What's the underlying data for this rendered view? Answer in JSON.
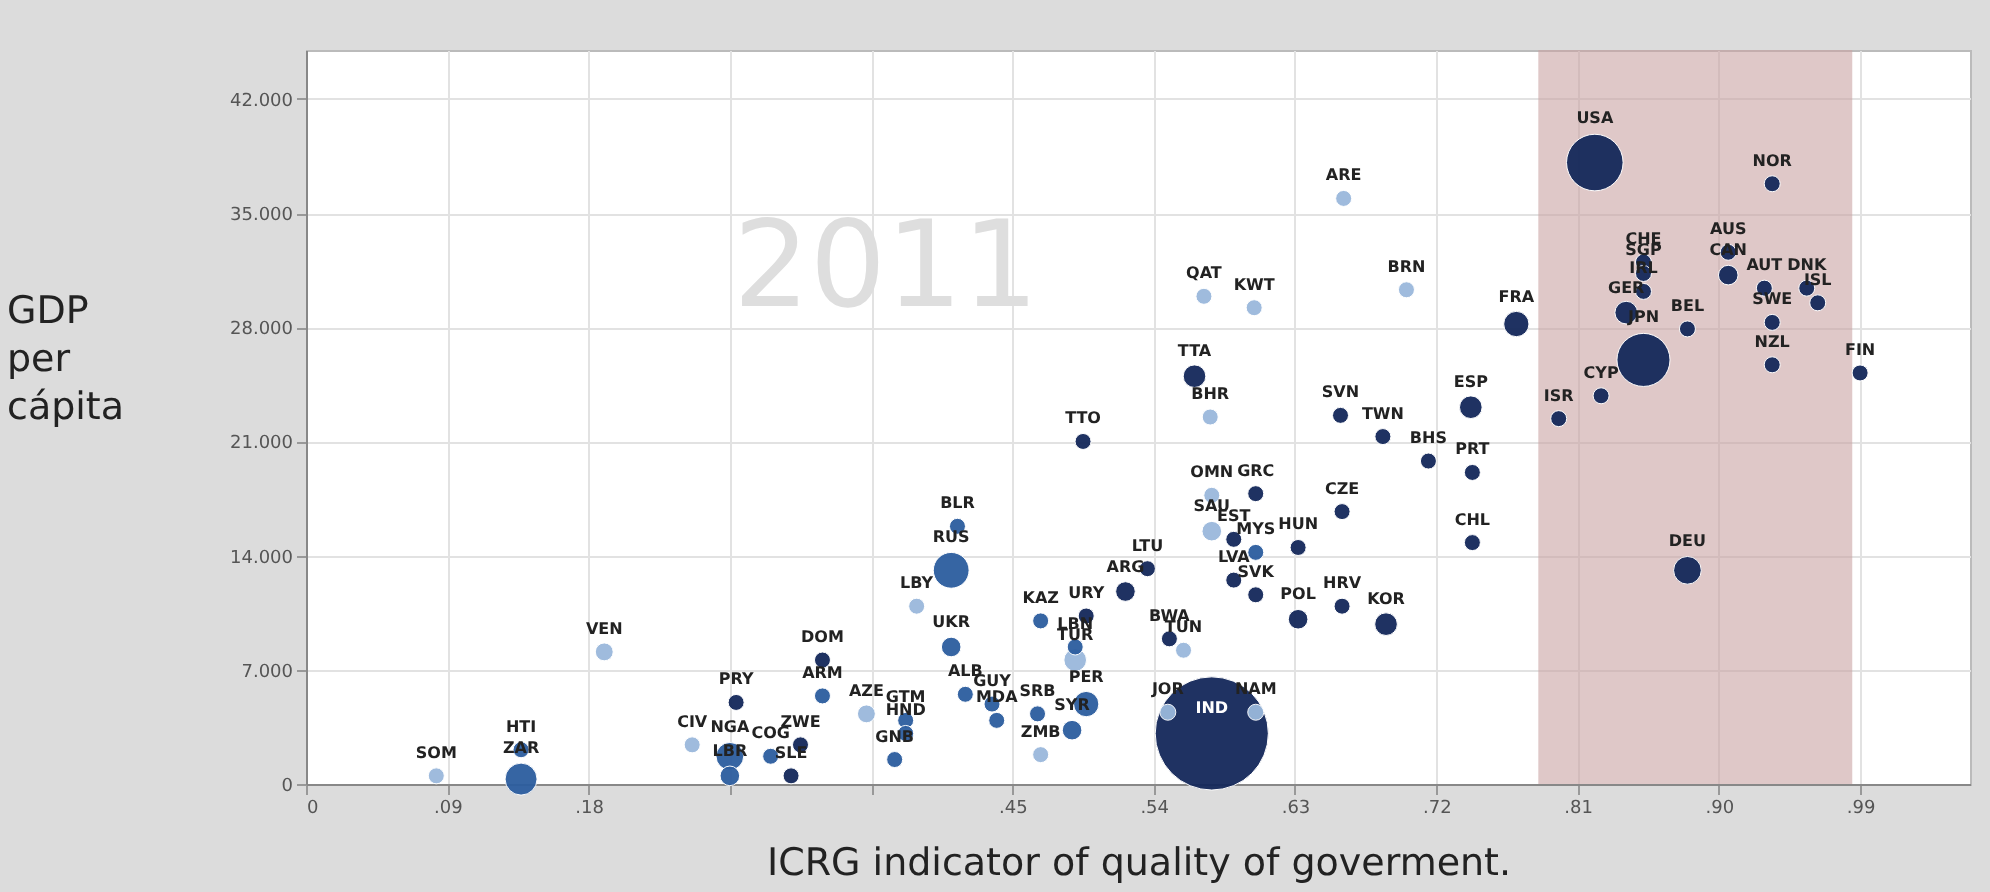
{
  "chart_data": {
    "type": "bubble",
    "xlabel": "ICRG indicator of quality of goverment.",
    "ylabel": "GDP per cápita",
    "xlim": [
      0,
      1.06
    ],
    "ylim": [
      0,
      45000
    ],
    "xticks": [
      0,
      {
        "value": 0.09,
        "label": ".09"
      },
      {
        "value": 0.18,
        "label": ".18"
      },
      {
        "value": 0.27,
        "label": null
      },
      {
        "value": 0.36,
        "label": null
      },
      {
        "value": 0.45,
        "label": ".45"
      },
      {
        "value": 0.54,
        "label": ".54"
      },
      {
        "value": 0.63,
        "label": ".63"
      },
      {
        "value": 0.72,
        "label": ".72"
      },
      {
        "value": 0.81,
        "label": ".81"
      },
      {
        "value": 0.9,
        "label": ".90"
      },
      {
        "value": 0.99,
        "label": ".99"
      }
    ],
    "yticks": [
      0,
      {
        "value": 7000,
        "label": "7.000"
      },
      {
        "value": 14000,
        "label": "14.000"
      },
      {
        "value": 21000,
        "label": "21.000"
      },
      {
        "value": 28000,
        "label": "28.000"
      },
      {
        "value": 35000,
        "label": "35.000"
      },
      {
        "value": 42000,
        "label": "42.000"
      }
    ],
    "grid": true,
    "x": [
      0.083,
      0.137,
      0.137,
      0.19,
      0.246,
      0.274,
      0.27,
      0.296,
      0.315,
      0.27,
      0.309,
      0.329,
      0.329,
      0.357,
      0.382,
      0.382,
      0.375,
      0.415,
      0.411,
      0.389,
      0.468,
      0.497,
      0.522,
      0.536,
      0.411,
      0.42,
      0.437,
      0.44,
      0.466,
      0.488,
      0.468,
      0.49,
      0.49,
      0.497,
      0.55,
      0.559,
      0.549,
      0.605,
      0.577,
      0.577,
      0.605,
      0.577,
      0.591,
      0.605,
      0.632,
      0.66,
      0.591,
      0.605,
      0.632,
      0.66,
      0.688,
      0.495,
      0.566,
      0.576,
      0.572,
      0.604,
      0.661,
      0.701,
      0.659,
      0.686,
      0.742,
      0.715,
      0.743,
      0.743,
      0.798,
      0.825,
      0.771,
      0.821,
      0.934,
      0.852,
      0.852,
      0.852,
      0.841,
      0.852,
      0.88,
      0.906,
      0.906,
      0.929,
      0.956,
      0.963,
      0.934,
      0.934,
      0.99,
      0.88
    ],
    "values": [
      500,
      2100,
      300,
      8100,
      2400,
      5000,
      1700,
      1700,
      2400,
      500,
      500,
      7600,
      5400,
      4300,
      3900,
      3100,
      1500,
      15800,
      13100,
      10900,
      10000,
      10300,
      11800,
      13200,
      8400,
      5500,
      4900,
      3900,
      4300,
      3300,
      1800,
      8400,
      7600,
      4900,
      8900,
      8200,
      4400,
      4400,
      3100,
      17700,
      17800,
      15500,
      15000,
      14200,
      14500,
      16700,
      12500,
      11600,
      10100,
      10900,
      9800,
      21000,
      25000,
      22500,
      29900,
      29200,
      35900,
      30300,
      22600,
      21300,
      23100,
      19800,
      19100,
      14800,
      22400,
      23800,
      28200,
      38100,
      36800,
      32000,
      31300,
      30200,
      28900,
      26000,
      27900,
      32600,
      31200,
      30400,
      30400,
      29500,
      28300,
      25700,
      25200,
      13100
    ],
    "sizes": [
      0.02,
      0.02,
      0.08,
      0.025,
      0.02,
      0.02,
      0.06,
      0.02,
      0.02,
      0.03,
      0.02,
      0.02,
      0.02,
      0.025,
      0.02,
      0.02,
      0.02,
      0.02,
      0.1,
      0.02,
      0.02,
      0.02,
      0.03,
      0.02,
      0.03,
      0.02,
      0.02,
      0.02,
      0.02,
      0.03,
      0.02,
      0.02,
      0.04,
      0.05,
      0.02,
      0.02,
      0.02,
      0.02,
      1.0,
      0.02,
      0.02,
      0.03,
      0.02,
      0.02,
      0.02,
      0.02,
      0.02,
      0.02,
      0.03,
      0.02,
      0.04,
      0.02,
      0.04,
      0.02,
      0.02,
      0.02,
      0.02,
      0.02,
      0.02,
      0.02,
      0.04,
      0.02,
      0.02,
      0.02,
      0.02,
      0.02,
      0.05,
      0.25,
      0.02,
      0.02,
      0.02,
      0.02,
      0.04,
      0.22,
      0.02,
      0.02,
      0.03,
      0.02,
      0.02,
      0.02,
      0.02,
      0.02,
      0.02,
      0.06
    ],
    "colors": [
      "#9ab8dc",
      "#2c5d9f",
      "#2c5d9f",
      "#9ab8dc",
      "#9ab8dc",
      "#14285a",
      "#2c5d9f",
      "#2c5d9f",
      "#14285a",
      "#2c5d9f",
      "#14285a",
      "#14285a",
      "#2c5d9f",
      "#9ab8dc",
      "#2c5d9f",
      "#2c5d9f",
      "#2c5d9f",
      "#2c5d9f",
      "#2c5d9f",
      "#9ab8dc",
      "#2c5d9f",
      "#14285a",
      "#14285a",
      "#14285a",
      "#2c5d9f",
      "#2c5d9f",
      "#2c5d9f",
      "#2c5d9f",
      "#2c5d9f",
      "#2c5d9f",
      "#9ab8dc",
      "#2c5d9f",
      "#9ab8dc",
      "#2c5d9f",
      "#14285a",
      "#9ab8dc",
      "#9ab8dc",
      "#9ab8dc",
      "#14285a",
      "#9ab8dc",
      "#14285a",
      "#9ab8dc",
      "#14285a",
      "#2c5d9f",
      "#14285a",
      "#14285a",
      "#14285a",
      "#14285a",
      "#14285a",
      "#14285a",
      "#14285a",
      "#14285a",
      "#14285a",
      "#9ab8dc",
      "#9ab8dc",
      "#9ab8dc",
      "#9ab8dc",
      "#9ab8dc",
      "#14285a",
      "#14285a",
      "#14285a",
      "#14285a",
      "#14285a",
      "#14285a",
      "#14285a",
      "#14285a",
      "#14285a",
      "#14285a",
      "#14285a",
      "#14285a",
      "#14285a",
      "#14285a",
      "#14285a",
      "#14285a",
      "#14285a",
      "#14285a",
      "#14285a",
      "#14285a",
      "#14285a",
      "#14285a",
      "#14285a",
      "#14285a",
      "#14285a",
      "#14285a"
    ],
    "bands": [
      {
        "axis": "x",
        "from": 0.785,
        "to": 0.985,
        "color": "#c9a3a3"
      }
    ],
    "annotations": [
      {
        "text": "SOM",
        "x": 0.083,
        "y": 500
      },
      {
        "text": "HTI",
        "x": 0.137,
        "y": 2100
      },
      {
        "text": "ZAR",
        "x": 0.137,
        "y": 300
      },
      {
        "text": "VEN",
        "x": 0.19,
        "y": 8100
      },
      {
        "text": "CIV",
        "x": 0.246,
        "y": 2400
      },
      {
        "text": "PRY",
        "x": 0.274,
        "y": 5000
      },
      {
        "text": "NGA",
        "x": 0.27,
        "y": 1700
      },
      {
        "text": "COG",
        "x": 0.296,
        "y": 1700
      },
      {
        "text": "ZWE",
        "x": 0.315,
        "y": 2400
      },
      {
        "text": "LBR",
        "x": 0.27,
        "y": 500
      },
      {
        "text": "SLE",
        "x": 0.309,
        "y": 500
      },
      {
        "text": "DOM",
        "x": 0.329,
        "y": 7600
      },
      {
        "text": "ARM",
        "x": 0.329,
        "y": 5400
      },
      {
        "text": "AZE",
        "x": 0.357,
        "y": 4300
      },
      {
        "text": "GTM",
        "x": 0.382,
        "y": 3900
      },
      {
        "text": "HND",
        "x": 0.382,
        "y": 3100
      },
      {
        "text": "GNB",
        "x": 0.375,
        "y": 1500
      },
      {
        "text": "BLR",
        "x": 0.415,
        "y": 15800
      },
      {
        "text": "RUS",
        "x": 0.411,
        "y": 13100
      },
      {
        "text": "LBY",
        "x": 0.389,
        "y": 10900
      },
      {
        "text": "KAZ",
        "x": 0.468,
        "y": 10000
      },
      {
        "text": "URY",
        "x": 0.497,
        "y": 10300
      },
      {
        "text": "ARG",
        "x": 0.522,
        "y": 11800
      },
      {
        "text": "LTU",
        "x": 0.536,
        "y": 13200
      },
      {
        "text": "UKR",
        "x": 0.411,
        "y": 8400
      },
      {
        "text": "ALB",
        "x": 0.42,
        "y": 5500
      },
      {
        "text": "GUY",
        "x": 0.437,
        "y": 4900
      },
      {
        "text": "MDA",
        "x": 0.44,
        "y": 3900
      },
      {
        "text": "SRB",
        "x": 0.466,
        "y": 4300
      },
      {
        "text": "SYR",
        "x": 0.488,
        "y": 3300
      },
      {
        "text": "ZMB",
        "x": 0.468,
        "y": 1800
      },
      {
        "text": "LBN",
        "x": 0.49,
        "y": 8400
      },
      {
        "text": "TUR",
        "x": 0.49,
        "y": 7600
      },
      {
        "text": "PER",
        "x": 0.497,
        "y": 4900
      },
      {
        "text": "BWA",
        "x": 0.55,
        "y": 8900
      },
      {
        "text": "TUN",
        "x": 0.559,
        "y": 8200
      },
      {
        "text": "JOR",
        "x": 0.549,
        "y": 4400
      },
      {
        "text": "NAM",
        "x": 0.605,
        "y": 4400
      },
      {
        "text": "IND",
        "x": 0.577,
        "y": 3100
      },
      {
        "text": "OMN",
        "x": 0.577,
        "y": 17700
      },
      {
        "text": "GRC",
        "x": 0.605,
        "y": 17800
      },
      {
        "text": "SAU",
        "x": 0.577,
        "y": 15500
      },
      {
        "text": "EST",
        "x": 0.591,
        "y": 15000
      },
      {
        "text": "MYS",
        "x": 0.605,
        "y": 14200
      },
      {
        "text": "HUN",
        "x": 0.632,
        "y": 14500
      },
      {
        "text": "CZE",
        "x": 0.66,
        "y": 16700
      },
      {
        "text": "LVA",
        "x": 0.591,
        "y": 12500
      },
      {
        "text": "SVK",
        "x": 0.605,
        "y": 11600
      },
      {
        "text": "POL",
        "x": 0.632,
        "y": 10100
      },
      {
        "text": "HRV",
        "x": 0.66,
        "y": 10900
      },
      {
        "text": "KOR",
        "x": 0.688,
        "y": 9800
      },
      {
        "text": "TTO",
        "x": 0.495,
        "y": 21000
      },
      {
        "text": "TTA",
        "x": 0.566,
        "y": 25000
      },
      {
        "text": "BHR",
        "x": 0.576,
        "y": 22500
      },
      {
        "text": "QAT",
        "x": 0.572,
        "y": 29900
      },
      {
        "text": "KWT",
        "x": 0.604,
        "y": 29200
      },
      {
        "text": "ARE",
        "x": 0.661,
        "y": 35900
      },
      {
        "text": "BRN",
        "x": 0.701,
        "y": 30300
      },
      {
        "text": "SVN",
        "x": 0.659,
        "y": 22600
      },
      {
        "text": "TWN",
        "x": 0.686,
        "y": 21300
      },
      {
        "text": "ESP",
        "x": 0.742,
        "y": 23100
      },
      {
        "text": "BHS",
        "x": 0.715,
        "y": 19800
      },
      {
        "text": "PRT",
        "x": 0.743,
        "y": 19100
      },
      {
        "text": "CHL",
        "x": 0.743,
        "y": 14800
      },
      {
        "text": "ISR",
        "x": 0.798,
        "y": 22400
      },
      {
        "text": "CYP",
        "x": 0.825,
        "y": 23800
      },
      {
        "text": "FRA",
        "x": 0.771,
        "y": 28200
      },
      {
        "text": "USA",
        "x": 0.821,
        "y": 38100
      },
      {
        "text": "NOR",
        "x": 0.934,
        "y": 36800
      },
      {
        "text": "CHE",
        "x": 0.852,
        "y": 32000
      },
      {
        "text": "SGP",
        "x": 0.852,
        "y": 31300
      },
      {
        "text": "IRL",
        "x": 0.852,
        "y": 30200
      },
      {
        "text": "GER",
        "x": 0.841,
        "y": 28900
      },
      {
        "text": "JPN",
        "x": 0.852,
        "y": 26000
      },
      {
        "text": "BEL",
        "x": 0.88,
        "y": 27900
      },
      {
        "text": "AUS",
        "x": 0.906,
        "y": 32600
      },
      {
        "text": "CAN",
        "x": 0.906,
        "y": 31200
      },
      {
        "text": "AUT",
        "x": 0.929,
        "y": 30400
      },
      {
        "text": "DNK",
        "x": 0.956,
        "y": 30400
      },
      {
        "text": "ISL",
        "x": 0.963,
        "y": 29500
      },
      {
        "text": "SWE",
        "x": 0.934,
        "y": 28300
      },
      {
        "text": "NZL",
        "x": 0.934,
        "y": 25700
      },
      {
        "text": "FIN",
        "x": 0.99,
        "y": 25200
      },
      {
        "text": "DEU",
        "x": 0.88,
        "y": 13100
      },
      "2011"
    ]
  }
}
